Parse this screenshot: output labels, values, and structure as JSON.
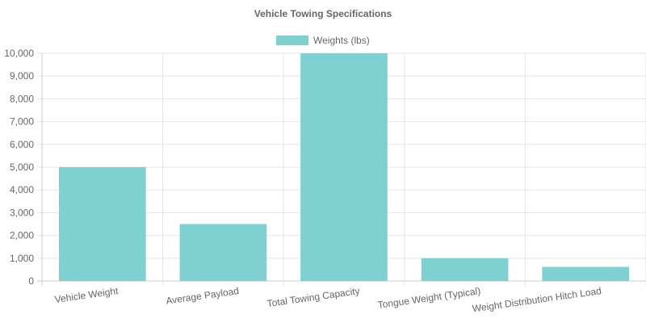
{
  "chart_data": {
    "type": "bar",
    "title": "Vehicle Towing Specifications",
    "legend_position": "top",
    "grid": true,
    "categories": [
      "Vehicle Weight",
      "Average Payload",
      "Total Towing Capacity",
      "Tongue Weight (Typical)",
      "Weight Distribution Hitch Load"
    ],
    "series": [
      {
        "name": "Weights (lbs)",
        "values": [
          5000,
          2500,
          10000,
          1000,
          620
        ],
        "color": "#7fd1d1"
      }
    ],
    "ylim": [
      0,
      10000
    ],
    "yticks": [
      "0",
      "1,000",
      "2,000",
      "3,000",
      "4,000",
      "5,000",
      "6,000",
      "7,000",
      "8,000",
      "9,000",
      "10,000"
    ]
  }
}
